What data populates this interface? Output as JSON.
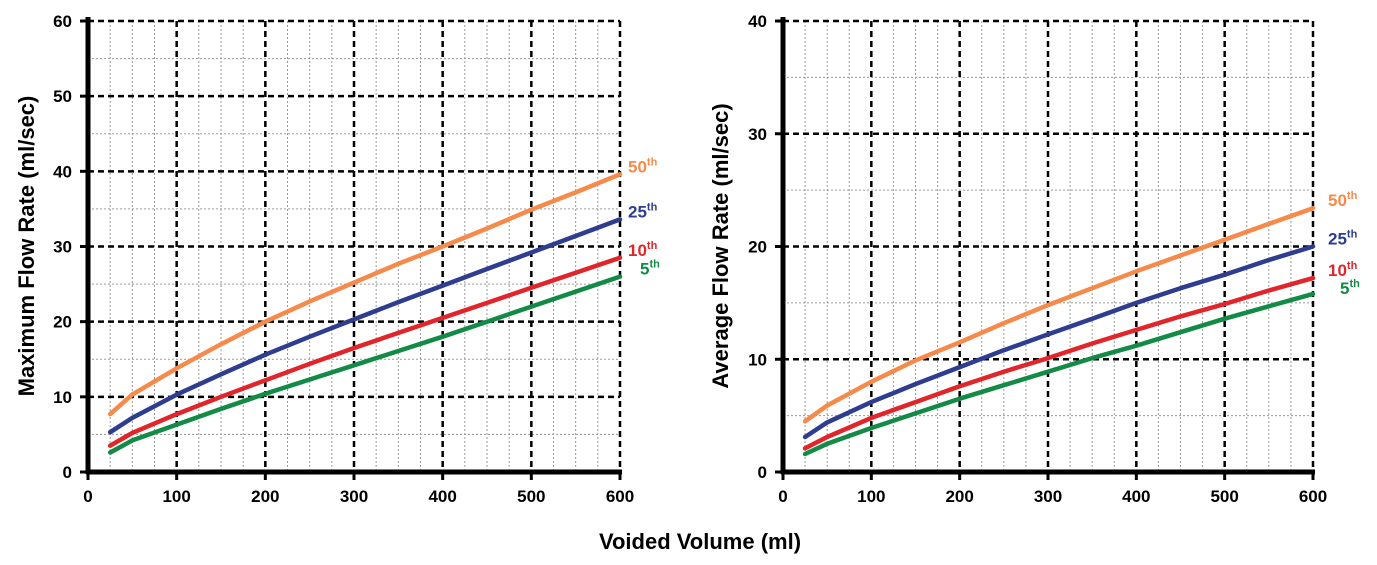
{
  "xlabel": "Voided Volume (ml)",
  "colors": {
    "p50": "#F58A4B",
    "p25": "#2E3D8F",
    "p10": "#E0262B",
    "p5": "#138A45"
  },
  "chart_data": [
    {
      "type": "line",
      "title": "",
      "ylabel": "Maximum Flow Rate (ml/sec)",
      "xlim": [
        0,
        600
      ],
      "ylim": [
        0,
        60
      ],
      "xticks": [
        0,
        100,
        200,
        300,
        400,
        500,
        600
      ],
      "yticks": [
        0,
        10,
        20,
        30,
        40,
        50,
        60
      ],
      "grid": true,
      "series": [
        {
          "name": "50",
          "suffix": "th",
          "color": "#F58A4B",
          "x": [
            25,
            50,
            100,
            150,
            200,
            250,
            300,
            350,
            400,
            450,
            500,
            550,
            600
          ],
          "y": [
            7.7,
            10.3,
            13.8,
            17.0,
            20.0,
            22.7,
            25.2,
            27.7,
            30.0,
            32.4,
            34.9,
            37.2,
            39.6
          ]
        },
        {
          "name": "25",
          "suffix": "th",
          "color": "#2E3D8F",
          "x": [
            25,
            50,
            100,
            150,
            200,
            250,
            300,
            350,
            400,
            450,
            500,
            550,
            600
          ],
          "y": [
            5.3,
            7.2,
            10.3,
            13.0,
            15.6,
            18.0,
            20.3,
            22.6,
            24.8,
            27.0,
            29.2,
            31.4,
            33.6
          ]
        },
        {
          "name": "10",
          "suffix": "th",
          "color": "#E0262B",
          "x": [
            25,
            50,
            100,
            150,
            200,
            250,
            300,
            350,
            400,
            450,
            500,
            550,
            600
          ],
          "y": [
            3.5,
            5.2,
            7.7,
            10.0,
            12.2,
            14.4,
            16.5,
            18.5,
            20.5,
            22.5,
            24.5,
            26.5,
            28.5
          ]
        },
        {
          "name": "5",
          "suffix": "th",
          "color": "#138A45",
          "x": [
            25,
            50,
            100,
            150,
            200,
            250,
            300,
            350,
            400,
            450,
            500,
            550,
            600
          ],
          "y": [
            2.6,
            4.2,
            6.3,
            8.4,
            10.4,
            12.3,
            14.2,
            16.1,
            18.0,
            20.0,
            22.0,
            24.0,
            26.0
          ]
        }
      ]
    },
    {
      "type": "line",
      "title": "",
      "ylabel": "Average Flow Rate (ml/sec)",
      "xlim": [
        0,
        600
      ],
      "ylim": [
        0,
        40
      ],
      "xticks": [
        0,
        100,
        200,
        300,
        400,
        500,
        600
      ],
      "yticks": [
        0,
        10,
        20,
        30,
        40
      ],
      "grid": true,
      "series": [
        {
          "name": "50",
          "suffix": "th",
          "color": "#F58A4B",
          "x": [
            25,
            50,
            100,
            150,
            200,
            250,
            300,
            350,
            400,
            450,
            500,
            550,
            600
          ],
          "y": [
            4.5,
            5.9,
            8.0,
            9.9,
            11.5,
            13.2,
            14.8,
            16.3,
            17.8,
            19.2,
            20.6,
            22.0,
            23.4
          ]
        },
        {
          "name": "25",
          "suffix": "th",
          "color": "#2E3D8F",
          "x": [
            25,
            50,
            100,
            150,
            200,
            250,
            300,
            350,
            400,
            450,
            500,
            550,
            600
          ],
          "y": [
            3.1,
            4.4,
            6.2,
            7.8,
            9.3,
            10.8,
            12.2,
            13.6,
            15.0,
            16.3,
            17.5,
            18.8,
            20.0
          ]
        },
        {
          "name": "10",
          "suffix": "th",
          "color": "#E0262B",
          "x": [
            25,
            50,
            100,
            150,
            200,
            250,
            300,
            350,
            400,
            450,
            500,
            550,
            600
          ],
          "y": [
            2.1,
            3.1,
            4.8,
            6.2,
            7.6,
            8.9,
            10.1,
            11.4,
            12.6,
            13.8,
            14.9,
            16.1,
            17.2
          ]
        },
        {
          "name": "5",
          "suffix": "th",
          "color": "#138A45",
          "x": [
            25,
            50,
            100,
            150,
            200,
            250,
            300,
            350,
            400,
            450,
            500,
            550,
            600
          ],
          "y": [
            1.6,
            2.5,
            3.9,
            5.2,
            6.5,
            7.7,
            8.9,
            10.1,
            11.2,
            12.4,
            13.6,
            14.7,
            15.8
          ]
        }
      ]
    }
  ]
}
